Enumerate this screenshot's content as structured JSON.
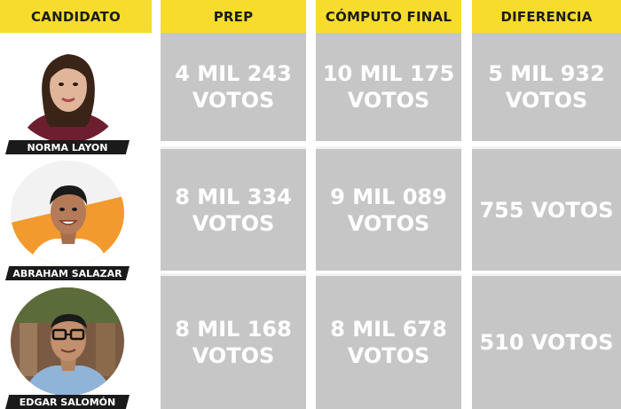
{
  "headers": {
    "candidato": "CANDIDATO",
    "prep": "PREP",
    "computo": "CÓMPUTO FINAL",
    "diferencia": "DIFERENCIA"
  },
  "rows": [
    {
      "name": "NORMA LAYON",
      "prep_1": "4 MIL 243",
      "prep_2": "VOTOS",
      "computo_1": "10 MIL 175",
      "computo_2": "VOTOS",
      "dif_1": "5 MIL 932",
      "dif_2": "VOTOS"
    },
    {
      "name": "ABRAHAM SALAZAR",
      "prep_1": "8 MIL 334",
      "prep_2": "VOTOS",
      "computo_1": "9 MIL 089",
      "computo_2": "VOTOS",
      "dif_1": "755 VOTOS"
    },
    {
      "name": "EDGAR SALOMÓN",
      "prep_1": "8 MIL 168",
      "prep_2": "VOTOS",
      "computo_1": "8 MIL 678",
      "computo_2": "VOTOS",
      "dif_1": "510 VOTOS"
    }
  ],
  "colors": {
    "header_bg": "#f7dc2e",
    "cell_bg": "#c6c6c6",
    "namebar_bg": "#1a1a1a"
  }
}
